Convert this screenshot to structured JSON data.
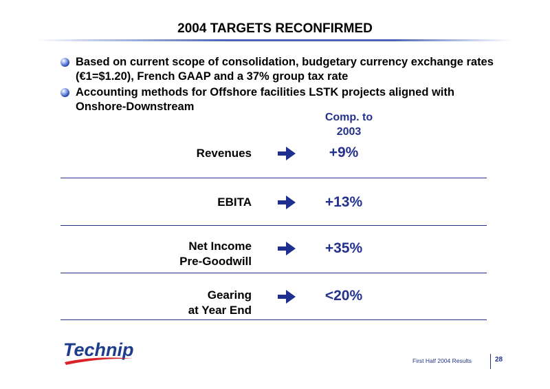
{
  "slide": {
    "title": "2004 TARGETS RECONFIRMED"
  },
  "bullets": [
    "Based on current scope of consolidation, budgetary currency exchange rates (€1=$1.20), French GAAP and a 37% group tax rate",
    "Accounting methods for Offshore facilities LSTK projects aligned with Onshore-Downstream"
  ],
  "column_header": {
    "line1": "Comp. to",
    "line2": "2003"
  },
  "targets": [
    {
      "label_line1": "Revenues",
      "label_line2": "",
      "value": "+9%"
    },
    {
      "label_line1": "EBITA",
      "label_line2": "",
      "value": "+13%"
    },
    {
      "label_line1": "Net Income",
      "label_line2": "Pre-Goodwill",
      "value": "+35%"
    },
    {
      "label_line1": "Gearing",
      "label_line2": "at Year End",
      "value": "<20%"
    }
  ],
  "logo": {
    "text": "Technip"
  },
  "footer": {
    "text": "First Half 2004 Results",
    "page_number": "28"
  },
  "colors": {
    "accent_blue": "#24318c",
    "logo_blue": "#1b3d8c",
    "logo_red": "#d8232a"
  },
  "icons": {
    "bullet": "sphere-bullet-icon",
    "row_arrow": "right-arrow-icon"
  }
}
